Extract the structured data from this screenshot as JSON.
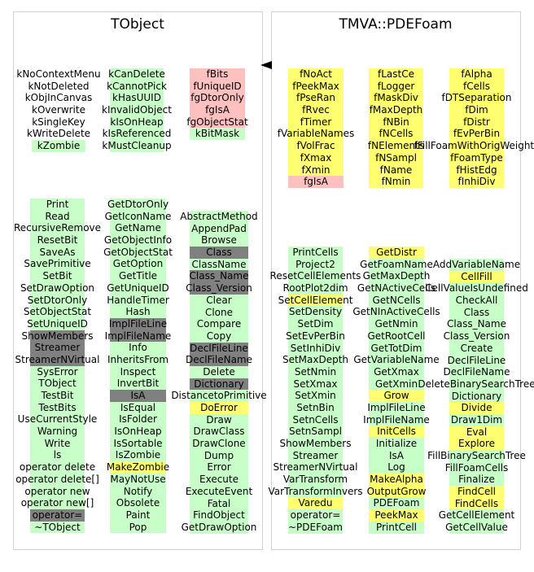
{
  "colors": {
    "data_member": "#ffc0c0",
    "method": "#c8ffc8",
    "virtual_method": "#ffff70",
    "pure_virtual": "#808080"
  },
  "left_panel": {
    "title": "TObject",
    "groups": [
      {
        "kind": "enum",
        "items": [
          {
            "text": "kNoContextMenu",
            "style": "plain"
          },
          {
            "text": "kNotDeleted",
            "style": "plain"
          },
          {
            "text": "kObjInCanvas",
            "style": "plain"
          },
          {
            "text": "kOverwrite",
            "style": "plain"
          },
          {
            "text": "kSingleKey",
            "style": "plain"
          },
          {
            "text": "kWriteDelete",
            "style": "plain"
          },
          {
            "text": "kZombie",
            "style": "method"
          }
        ]
      },
      {
        "kind": "enum",
        "items": [
          {
            "text": "kCanDelete",
            "style": "method"
          },
          {
            "text": "kCannotPick",
            "style": "method"
          },
          {
            "text": "kHasUUID",
            "style": "method"
          },
          {
            "text": "kInvalidObject",
            "style": "method"
          },
          {
            "text": "kIsOnHeap",
            "style": "method"
          },
          {
            "text": "kIsReferenced",
            "style": "method"
          },
          {
            "text": "kMustCleanup",
            "style": "method"
          }
        ]
      },
      {
        "kind": "members",
        "items": [
          {
            "text": "fBits",
            "style": "data_member"
          },
          {
            "text": "fUniqueID",
            "style": "data_member"
          },
          {
            "text": "fgDtorOnly",
            "style": "data_member"
          },
          {
            "text": "fgIsA",
            "style": "data_member"
          },
          {
            "text": "fgObjectStat",
            "style": "data_member"
          },
          {
            "text": "kBitMask",
            "style": "method"
          }
        ]
      },
      {
        "kind": "methods",
        "items": [
          {
            "text": "Print",
            "style": "method"
          },
          {
            "text": "Read",
            "style": "method"
          },
          {
            "text": "RecursiveRemove",
            "style": "method"
          },
          {
            "text": "ResetBit",
            "style": "method"
          },
          {
            "text": "SaveAs",
            "style": "method"
          },
          {
            "text": "SavePrimitive",
            "style": "method"
          },
          {
            "text": "SetBit",
            "style": "method"
          },
          {
            "text": "SetDrawOption",
            "style": "method"
          },
          {
            "text": "SetDtorOnly",
            "style": "method"
          },
          {
            "text": "SetObjectStat",
            "style": "method"
          },
          {
            "text": "SetUniqueID",
            "style": "method"
          },
          {
            "text": "ShowMembers",
            "style": "pure_virtual"
          },
          {
            "text": "Streamer",
            "style": "pure_virtual"
          },
          {
            "text": "StreamerNVirtual",
            "style": "pure_virtual"
          },
          {
            "text": "SysError",
            "style": "method"
          },
          {
            "text": "TObject",
            "style": "method"
          },
          {
            "text": "TestBit",
            "style": "method"
          },
          {
            "text": "TestBits",
            "style": "method"
          },
          {
            "text": "UseCurrentStyle",
            "style": "method"
          },
          {
            "text": "Warning",
            "style": "method"
          },
          {
            "text": "Write",
            "style": "method"
          },
          {
            "text": "ls",
            "style": "method"
          },
          {
            "text": "operator delete",
            "style": "method"
          },
          {
            "text": "operator delete[]",
            "style": "method"
          },
          {
            "text": "operator new",
            "style": "method"
          },
          {
            "text": "operator new[]",
            "style": "method"
          },
          {
            "text": "operator=",
            "style": "pure_virtual"
          },
          {
            "text": "~TObject",
            "style": "method"
          }
        ]
      },
      {
        "kind": "methods",
        "items": [
          {
            "text": "GetDtorOnly",
            "style": "method"
          },
          {
            "text": "GetIconName",
            "style": "method"
          },
          {
            "text": "GetName",
            "style": "method"
          },
          {
            "text": "GetObjectInfo",
            "style": "method"
          },
          {
            "text": "GetObjectStat",
            "style": "method"
          },
          {
            "text": "GetOption",
            "style": "method"
          },
          {
            "text": "GetTitle",
            "style": "method"
          },
          {
            "text": "GetUniqueID",
            "style": "method"
          },
          {
            "text": "HandleTimer",
            "style": "method"
          },
          {
            "text": "Hash",
            "style": "method"
          },
          {
            "text": "ImplFileLine",
            "style": "pure_virtual"
          },
          {
            "text": "ImplFileName",
            "style": "pure_virtual"
          },
          {
            "text": "Info",
            "style": "method"
          },
          {
            "text": "InheritsFrom",
            "style": "method"
          },
          {
            "text": "Inspect",
            "style": "method"
          },
          {
            "text": "InvertBit",
            "style": "method"
          },
          {
            "text": "IsA",
            "style": "pure_virtual"
          },
          {
            "text": "IsEqual",
            "style": "method"
          },
          {
            "text": "IsFolder",
            "style": "method"
          },
          {
            "text": "IsOnHeap",
            "style": "method"
          },
          {
            "text": "IsSortable",
            "style": "method"
          },
          {
            "text": "IsZombie",
            "style": "method"
          },
          {
            "text": "MakeZombie",
            "style": "virtual_method"
          },
          {
            "text": "MayNotUse",
            "style": "method"
          },
          {
            "text": "Notify",
            "style": "method"
          },
          {
            "text": "Obsolete",
            "style": "method"
          },
          {
            "text": "Paint",
            "style": "method"
          },
          {
            "text": "Pop",
            "style": "method"
          }
        ]
      },
      {
        "kind": "methods",
        "items": [
          {
            "text": "AbstractMethod",
            "style": "method"
          },
          {
            "text": "AppendPad",
            "style": "method"
          },
          {
            "text": "Browse",
            "style": "method"
          },
          {
            "text": "Class",
            "style": "pure_virtual"
          },
          {
            "text": "ClassName",
            "style": "method"
          },
          {
            "text": "Class_Name",
            "style": "pure_virtual"
          },
          {
            "text": "Class_Version",
            "style": "pure_virtual"
          },
          {
            "text": "Clear",
            "style": "method"
          },
          {
            "text": "Clone",
            "style": "method"
          },
          {
            "text": "Compare",
            "style": "method"
          },
          {
            "text": "Copy",
            "style": "method"
          },
          {
            "text": "DeclFileLine",
            "style": "pure_virtual"
          },
          {
            "text": "DeclFileName",
            "style": "pure_virtual"
          },
          {
            "text": "Delete",
            "style": "method"
          },
          {
            "text": "Dictionary",
            "style": "pure_virtual"
          },
          {
            "text": "DistancetoPrimitive",
            "style": "method"
          },
          {
            "text": "DoError",
            "style": "virtual_method"
          },
          {
            "text": "Draw",
            "style": "method"
          },
          {
            "text": "DrawClass",
            "style": "method"
          },
          {
            "text": "DrawClone",
            "style": "method"
          },
          {
            "text": "Dump",
            "style": "method"
          },
          {
            "text": "Error",
            "style": "method"
          },
          {
            "text": "Execute",
            "style": "method"
          },
          {
            "text": "ExecuteEvent",
            "style": "method"
          },
          {
            "text": "Fatal",
            "style": "method"
          },
          {
            "text": "FindObject",
            "style": "method"
          },
          {
            "text": "GetDrawOption",
            "style": "method"
          }
        ]
      }
    ]
  },
  "right_panel": {
    "title": "TMVA::PDEFoam",
    "groups": [
      {
        "kind": "members",
        "items": [
          {
            "text": "fNoAct",
            "style": "virtual_method"
          },
          {
            "text": "fPeekMax",
            "style": "virtual_method"
          },
          {
            "text": "fPseRan",
            "style": "virtual_method"
          },
          {
            "text": "fRvec",
            "style": "virtual_method"
          },
          {
            "text": "fTimer",
            "style": "virtual_method"
          },
          {
            "text": "fVariableNames",
            "style": "virtual_method"
          },
          {
            "text": "fVolFrac",
            "style": "virtual_method"
          },
          {
            "text": "fXmax",
            "style": "virtual_method"
          },
          {
            "text": "fXmin",
            "style": "virtual_method"
          },
          {
            "text": "fgIsA",
            "style": "data_member"
          }
        ]
      },
      {
        "kind": "members",
        "items": [
          {
            "text": "fLastCe",
            "style": "virtual_method"
          },
          {
            "text": "fLogger",
            "style": "virtual_method"
          },
          {
            "text": "fMaskDiv",
            "style": "virtual_method"
          },
          {
            "text": "fMaxDepth",
            "style": "virtual_method"
          },
          {
            "text": "fNBin",
            "style": "virtual_method"
          },
          {
            "text": "fNCells",
            "style": "virtual_method"
          },
          {
            "text": "fNElements",
            "style": "virtual_method"
          },
          {
            "text": "fNSampl",
            "style": "virtual_method"
          },
          {
            "text": "fName",
            "style": "virtual_method"
          },
          {
            "text": "fNmin",
            "style": "virtual_method"
          }
        ]
      },
      {
        "kind": "members",
        "items": [
          {
            "text": "fAlpha",
            "style": "virtual_method"
          },
          {
            "text": "fCells",
            "style": "virtual_method"
          },
          {
            "text": "fDTSeparation",
            "style": "virtual_method"
          },
          {
            "text": "fDim",
            "style": "virtual_method"
          },
          {
            "text": "fDistr",
            "style": "virtual_method"
          },
          {
            "text": "fEvPerBin",
            "style": "virtual_method"
          },
          {
            "text": "fFillFoamWithOrigWeights",
            "style": "virtual_method"
          },
          {
            "text": "fFoamType",
            "style": "virtual_method"
          },
          {
            "text": "fHistEdg",
            "style": "virtual_method"
          },
          {
            "text": "fInhiDiv",
            "style": "virtual_method"
          }
        ]
      },
      {
        "kind": "methods",
        "items": [
          {
            "text": "PrintCells",
            "style": "method"
          },
          {
            "text": "Project2",
            "style": "method"
          },
          {
            "text": "ResetCellElements",
            "style": "method"
          },
          {
            "text": "RootPlot2dim",
            "style": "method"
          },
          {
            "text": "SetCellElement",
            "style": "virtual_method"
          },
          {
            "text": "SetDensity",
            "style": "method"
          },
          {
            "text": "SetDim",
            "style": "method"
          },
          {
            "text": "SetEvPerBin",
            "style": "method"
          },
          {
            "text": "SetInhiDiv",
            "style": "method"
          },
          {
            "text": "SetMaxDepth",
            "style": "method"
          },
          {
            "text": "SetNmin",
            "style": "method"
          },
          {
            "text": "SetXmax",
            "style": "method"
          },
          {
            "text": "SetXmin",
            "style": "method"
          },
          {
            "text": "SetnBin",
            "style": "method"
          },
          {
            "text": "SetnCells",
            "style": "method"
          },
          {
            "text": "SetnSampl",
            "style": "method"
          },
          {
            "text": "ShowMembers",
            "style": "method"
          },
          {
            "text": "Streamer",
            "style": "method"
          },
          {
            "text": "StreamerNVirtual",
            "style": "method"
          },
          {
            "text": "VarTransform",
            "style": "method"
          },
          {
            "text": "VarTransformInvers",
            "style": "method"
          },
          {
            "text": "Varedu",
            "style": "virtual_method"
          },
          {
            "text": "operator=",
            "style": "method"
          },
          {
            "text": "~PDEFoam",
            "style": "method"
          }
        ]
      },
      {
        "kind": "methods",
        "items": [
          {
            "text": "GetDistr",
            "style": "virtual_method"
          },
          {
            "text": "GetFoamName",
            "style": "method"
          },
          {
            "text": "GetMaxDepth",
            "style": "method"
          },
          {
            "text": "GetNActiveCells",
            "style": "method"
          },
          {
            "text": "GetNCells",
            "style": "method"
          },
          {
            "text": "GetNInActiveCells",
            "style": "method"
          },
          {
            "text": "GetNmin",
            "style": "method"
          },
          {
            "text": "GetRootCell",
            "style": "method"
          },
          {
            "text": "GetTotDim",
            "style": "method"
          },
          {
            "text": "GetVariableName",
            "style": "method"
          },
          {
            "text": "GetXmax",
            "style": "method"
          },
          {
            "text": "GetXmin",
            "style": "method"
          },
          {
            "text": "Grow",
            "style": "virtual_method"
          },
          {
            "text": "ImplFileLine",
            "style": "method"
          },
          {
            "text": "ImplFileName",
            "style": "method"
          },
          {
            "text": "InitCells",
            "style": "virtual_method"
          },
          {
            "text": "Initialize",
            "style": "method"
          },
          {
            "text": "IsA",
            "style": "method"
          },
          {
            "text": "Log",
            "style": "method"
          },
          {
            "text": "MakeAlpha",
            "style": "virtual_method"
          },
          {
            "text": "OutputGrow",
            "style": "virtual_method"
          },
          {
            "text": "PDEFoam",
            "style": "method"
          },
          {
            "text": "PeekMax",
            "style": "virtual_method"
          },
          {
            "text": "PrintCell",
            "style": "method"
          }
        ]
      },
      {
        "kind": "methods",
        "items": [
          {
            "text": "AddVariableName",
            "style": "method"
          },
          {
            "text": "CellFill",
            "style": "virtual_method"
          },
          {
            "text": "CellValueIsUndefined",
            "style": "method"
          },
          {
            "text": "CheckAll",
            "style": "method"
          },
          {
            "text": "Class",
            "style": "method"
          },
          {
            "text": "Class_Name",
            "style": "method"
          },
          {
            "text": "Class_Version",
            "style": "method"
          },
          {
            "text": "Create",
            "style": "method"
          },
          {
            "text": "DeclFileLine",
            "style": "method"
          },
          {
            "text": "DeclFileName",
            "style": "method"
          },
          {
            "text": "DeleteBinarySearchTree",
            "style": "method"
          },
          {
            "text": "Dictionary",
            "style": "method"
          },
          {
            "text": "Divide",
            "style": "virtual_method"
          },
          {
            "text": "Draw1Dim",
            "style": "method"
          },
          {
            "text": "Eval",
            "style": "virtual_method"
          },
          {
            "text": "Explore",
            "style": "virtual_method"
          },
          {
            "text": "FillBinarySearchTree",
            "style": "method"
          },
          {
            "text": "FillFoamCells",
            "style": "method"
          },
          {
            "text": "Finalize",
            "style": "method"
          },
          {
            "text": "FindCell",
            "style": "virtual_method"
          },
          {
            "text": "FindCells",
            "style": "virtual_method"
          },
          {
            "text": "GetCellElement",
            "style": "method"
          },
          {
            "text": "GetCellValue",
            "style": "method"
          }
        ]
      }
    ]
  }
}
